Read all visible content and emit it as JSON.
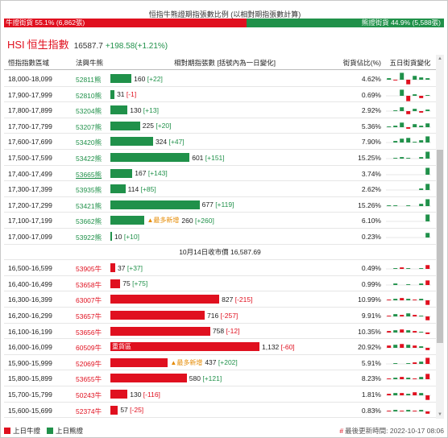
{
  "title": "恒指牛熊證期指張數比例 (以相對期指張數計算)",
  "ratio": {
    "bull_label": "牛證街貨 55.1% (6,862張)",
    "bull_pct": 55.1,
    "bear_label": "熊證街貨 44.9% (5,588張)",
    "bear_pct": 44.9
  },
  "index": {
    "code": "HSI",
    "name": "恒生指數",
    "value": "16587.7",
    "change": "+198.58(+1.21%)"
  },
  "columns": {
    "range": "恒指指數區域",
    "code": "法興牛熊",
    "qty": "相對期指張數 [括號內為一日變化]",
    "pct": "街貨佔比(%)",
    "spark": "五日街貨變化"
  },
  "max_qty": 1132,
  "bear_rows": [
    {
      "range": "18,000-18,099",
      "code": "52811熊",
      "qty": 160,
      "qty_label": "160",
      "change": "[+22]",
      "pct": "4.62%",
      "spark": [
        2,
        -1,
        9,
        -6,
        5,
        3,
        2
      ]
    },
    {
      "range": "17,900-17,999",
      "code": "52810熊",
      "qty": 31,
      "qty_label": "31",
      "change": "[-1]",
      "pct": "0.69%",
      "spark": [
        0,
        0,
        8,
        -7,
        2,
        -3,
        1
      ]
    },
    {
      "range": "17,800-17,899",
      "code": "53204熊",
      "qty": 130,
      "qty_label": "130",
      "change": "[+13]",
      "pct": "2.92%",
      "spark": [
        0,
        1,
        5,
        -4,
        3,
        -2,
        2
      ]
    },
    {
      "range": "17,700-17,799",
      "code": "53207熊",
      "qty": 225,
      "qty_label": "225",
      "change": "[+20]",
      "pct": "5.36%",
      "spark": [
        1,
        2,
        6,
        -2,
        4,
        2,
        5
      ]
    },
    {
      "range": "17,600-17,699",
      "code": "53420熊",
      "qty": 324,
      "qty_label": "324",
      "change": "[+47]",
      "pct": "7.90%",
      "spark": [
        0,
        2,
        5,
        6,
        1,
        3,
        8
      ]
    },
    {
      "range": "17,500-17,599",
      "code": "53422熊",
      "qty": 601,
      "qty_label": "601",
      "change": "[+151]",
      "pct": "15.25%",
      "spark": [
        0,
        1,
        2,
        1,
        0,
        2,
        9
      ]
    },
    {
      "range": "17,400-17,499",
      "code": "53665熊",
      "qty": 167,
      "qty_label": "167",
      "change": "[+143]",
      "pct": "3.74%",
      "spark": [
        0,
        0,
        0,
        0,
        0,
        0,
        9
      ],
      "underline": true
    },
    {
      "range": "17,300-17,399",
      "code": "53935熊",
      "qty": 114,
      "qty_label": "114",
      "change": "[+85]",
      "pct": "2.62%",
      "spark": [
        0,
        0,
        0,
        0,
        0,
        2,
        8
      ]
    },
    {
      "range": "17,200-17,299",
      "code": "53421熊",
      "qty": 677,
      "qty_label": "677",
      "change": "[+119]",
      "pct": "15.26%",
      "spark": [
        1,
        1,
        0,
        1,
        0,
        3,
        9
      ]
    },
    {
      "range": "17,100-17,199",
      "code": "53662熊",
      "qty": 260,
      "qty_label": "260",
      "change": "[+260]",
      "pct": "6.10%",
      "spark": [
        0,
        0,
        0,
        0,
        0,
        0,
        9
      ],
      "newmax": "▲最多新增"
    },
    {
      "range": "17,000-17,099",
      "code": "53922熊",
      "qty": 10,
      "qty_label": "10",
      "change": "[+10]",
      "pct": "0.23%",
      "spark": [
        0,
        0,
        0,
        0,
        0,
        0,
        6
      ]
    }
  ],
  "close_label": "10月14日收市價 16,587.69",
  "bull_rows": [
    {
      "range": "16,500-16,599",
      "code": "53905牛",
      "qty": 37,
      "qty_label": "37",
      "change": "[+37]",
      "pct": "0.49%",
      "spark": [
        0,
        1,
        2,
        1,
        0,
        1,
        5
      ]
    },
    {
      "range": "16,400-16,499",
      "code": "53658牛",
      "qty": 75,
      "qty_label": "75",
      "change": "[+75]",
      "pct": "0.99%",
      "spark": [
        0,
        2,
        0,
        1,
        0,
        2,
        6
      ]
    },
    {
      "range": "16,300-16,399",
      "code": "63007牛",
      "qty": 827,
      "qty_label": "827",
      "change": "[-215]",
      "pct": "10.99%",
      "spark": [
        1,
        2,
        3,
        2,
        1,
        2,
        -6
      ]
    },
    {
      "range": "16,200-16,299",
      "code": "53657牛",
      "qty": 716,
      "qty_label": "716",
      "change": "[-257]",
      "pct": "9.91%",
      "spark": [
        1,
        3,
        2,
        4,
        2,
        1,
        -5
      ]
    },
    {
      "range": "16,100-16,199",
      "code": "53656牛",
      "qty": 758,
      "qty_label": "758",
      "change": "[-12]",
      "pct": "10.35%",
      "spark": [
        2,
        3,
        4,
        3,
        2,
        1,
        -2
      ]
    },
    {
      "range": "16,000-16,099",
      "code": "60509牛",
      "qty": 1132,
      "qty_label": "1,132",
      "change": "[-60]",
      "pct": "20.92%",
      "spark": [
        3,
        4,
        5,
        4,
        3,
        2,
        -3
      ],
      "inner_label": "重貨區"
    },
    {
      "range": "15,900-15,999",
      "code": "52069牛",
      "qty": 437,
      "qty_label": "437",
      "change": "[+202]",
      "pct": "5.91%",
      "spark": [
        0,
        1,
        0,
        1,
        2,
        3,
        8
      ],
      "newmax": "▲最多新增"
    },
    {
      "range": "15,800-15,899",
      "code": "53655牛",
      "qty": 580,
      "qty_label": "580",
      "change": "[+121]",
      "pct": "8.23%",
      "spark": [
        1,
        2,
        3,
        2,
        1,
        3,
        7
      ]
    },
    {
      "range": "15,700-15,799",
      "code": "50243牛",
      "qty": 130,
      "qty_label": "130",
      "change": "[-116]",
      "pct": "1.81%",
      "spark": [
        2,
        3,
        3,
        2,
        4,
        3,
        -6
      ]
    },
    {
      "range": "15,600-15,699",
      "code": "52374牛",
      "qty": 57,
      "qty_label": "57",
      "change": "[-25]",
      "pct": "0.83%",
      "spark": [
        1,
        2,
        1,
        2,
        1,
        2,
        -3
      ]
    }
  ],
  "legend": {
    "bull": "上日牛證",
    "bear": "上日熊證"
  },
  "updated": {
    "marker": "#",
    "text": "最後更新時間: 2022-10-17 08:06"
  },
  "colors": {
    "bull": "#e0101f",
    "bear": "#20914a",
    "newmax": "#e58a00"
  },
  "icons": {
    "scroll_up": "triangle-up-icon",
    "scroll_down": "triangle-down-icon"
  }
}
